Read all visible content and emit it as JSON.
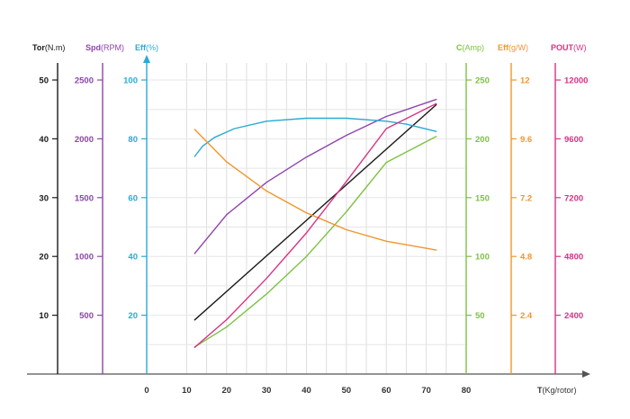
{
  "chart_data": {
    "type": "line",
    "xlabel": {
      "bold": "T",
      "rest": "(Kg/rotor)"
    },
    "x_ticks": [
      "0",
      "10",
      "20",
      "30",
      "40",
      "50",
      "60",
      "70",
      "80"
    ],
    "xlim": [
      0,
      80
    ],
    "grid": true,
    "axes": [
      {
        "id": "tor",
        "label_bold": "Tor",
        "label_unit": "(N.m)",
        "side": "left",
        "color": "#1a1a1a",
        "min": 0,
        "max": 50,
        "ticks": [
          "10",
          "20",
          "30",
          "40",
          "50"
        ]
      },
      {
        "id": "spd",
        "label_bold": "Spd",
        "label_unit": "(RPM)",
        "side": "left",
        "color": "#8e44ad",
        "min": 0,
        "max": 2500,
        "ticks": [
          "500",
          "1000",
          "1500",
          "2000",
          "2500"
        ]
      },
      {
        "id": "eff",
        "label_bold": "Eff",
        "label_unit": "(%)",
        "side": "left",
        "color": "#2aa9d6",
        "min": 0,
        "max": 100,
        "ticks": [
          "20",
          "40",
          "60",
          "80",
          "100"
        ]
      },
      {
        "id": "cur",
        "label_bold": "C",
        "label_unit": "(Amp)",
        "side": "right",
        "color": "#7cc242",
        "min": 0,
        "max": 250,
        "ticks": [
          "50",
          "100",
          "150",
          "200",
          "250"
        ]
      },
      {
        "id": "effg",
        "label_bold": "Eff",
        "label_unit": "(g/W)",
        "side": "right",
        "color": "#f0962e",
        "min": 0,
        "max": 12,
        "ticks": [
          "2.4",
          "4.8",
          "7.2",
          "9.6",
          "12"
        ]
      },
      {
        "id": "pout",
        "label_bold": "POUT",
        "label_unit": "(W)",
        "side": "right",
        "color": "#d63384",
        "min": 0,
        "max": 12000,
        "ticks": [
          "2400",
          "4800",
          "7200",
          "9600",
          "12000"
        ]
      }
    ],
    "series": [
      {
        "axis": "tor",
        "color": "#1a1a1a",
        "x": [
          12,
          72.5
        ],
        "y": [
          9.2,
          45.8
        ]
      },
      {
        "axis": "spd",
        "color": "#8e44ad",
        "x": [
          12,
          20,
          30,
          40,
          50,
          60,
          72.5
        ],
        "y": [
          1025,
          1355,
          1630,
          1845,
          2030,
          2190,
          2335
        ]
      },
      {
        "axis": "eff",
        "color": "#2aa9d6",
        "x": [
          12,
          14,
          17,
          22,
          30,
          40,
          50,
          60,
          65,
          72.5
        ],
        "y": [
          74,
          77.5,
          80.5,
          83.5,
          86,
          87,
          87,
          86,
          85,
          82.5
        ]
      },
      {
        "axis": "cur",
        "color": "#7cc242",
        "x": [
          12,
          20,
          30,
          40,
          50,
          60,
          72.5
        ],
        "y": [
          23,
          40,
          68,
          100,
          138,
          180,
          202
        ]
      },
      {
        "axis": "effg",
        "color": "#f0962e",
        "x": [
          12,
          20,
          30,
          40,
          50,
          60,
          72.5
        ],
        "y": [
          9.98,
          8.66,
          7.47,
          6.58,
          5.89,
          5.42,
          5.06
        ]
      },
      {
        "axis": "pout",
        "color": "#d63384",
        "x": [
          12,
          20,
          30,
          40,
          50,
          60,
          72.5
        ],
        "y": [
          1090,
          2220,
          3900,
          5760,
          7860,
          10020,
          11040
        ]
      }
    ]
  }
}
